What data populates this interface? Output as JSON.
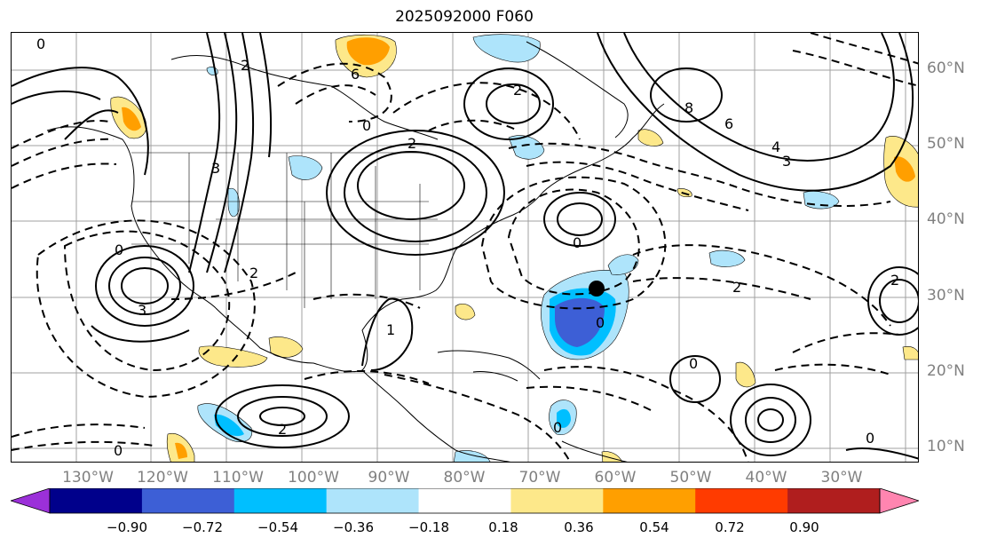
{
  "title": "2025092000 F060",
  "lat_labels": [
    "60°N",
    "50°N",
    "40°N",
    "30°N",
    "20°N",
    "10°N"
  ],
  "lon_labels": [
    "130°W",
    "120°W",
    "110°W",
    "100°W",
    "90°W",
    "80°W",
    "70°W",
    "60°W",
    "50°W",
    "40°W",
    "30°W"
  ],
  "colorbar": {
    "tick_labels": [
      "−0.90",
      "−0.72",
      "−0.54",
      "−0.36",
      "−0.18",
      "0.18",
      "0.36",
      "0.54",
      "0.72",
      "0.90"
    ],
    "colors": [
      "#9b30d9",
      "#00008b",
      "#3d5fd6",
      "#00bfff",
      "#aee4fb",
      "#ffffff",
      "#fde88a",
      "#ff9f00",
      "#ff3b00",
      "#b01e1e",
      "#ff85b0"
    ]
  },
  "contour_labels": [
    "0",
    "6",
    "2",
    "2",
    "3",
    "0",
    "2",
    "2",
    "6",
    "8",
    "4",
    "3",
    "3",
    "2",
    "0",
    "2",
    "0",
    "0",
    "2",
    "0",
    "0",
    "1",
    "0",
    "0"
  ],
  "map_features": {
    "marker": "storm-center-dot",
    "shading": "anomaly-fill",
    "lines": "contours-solid-and-dashed"
  }
}
